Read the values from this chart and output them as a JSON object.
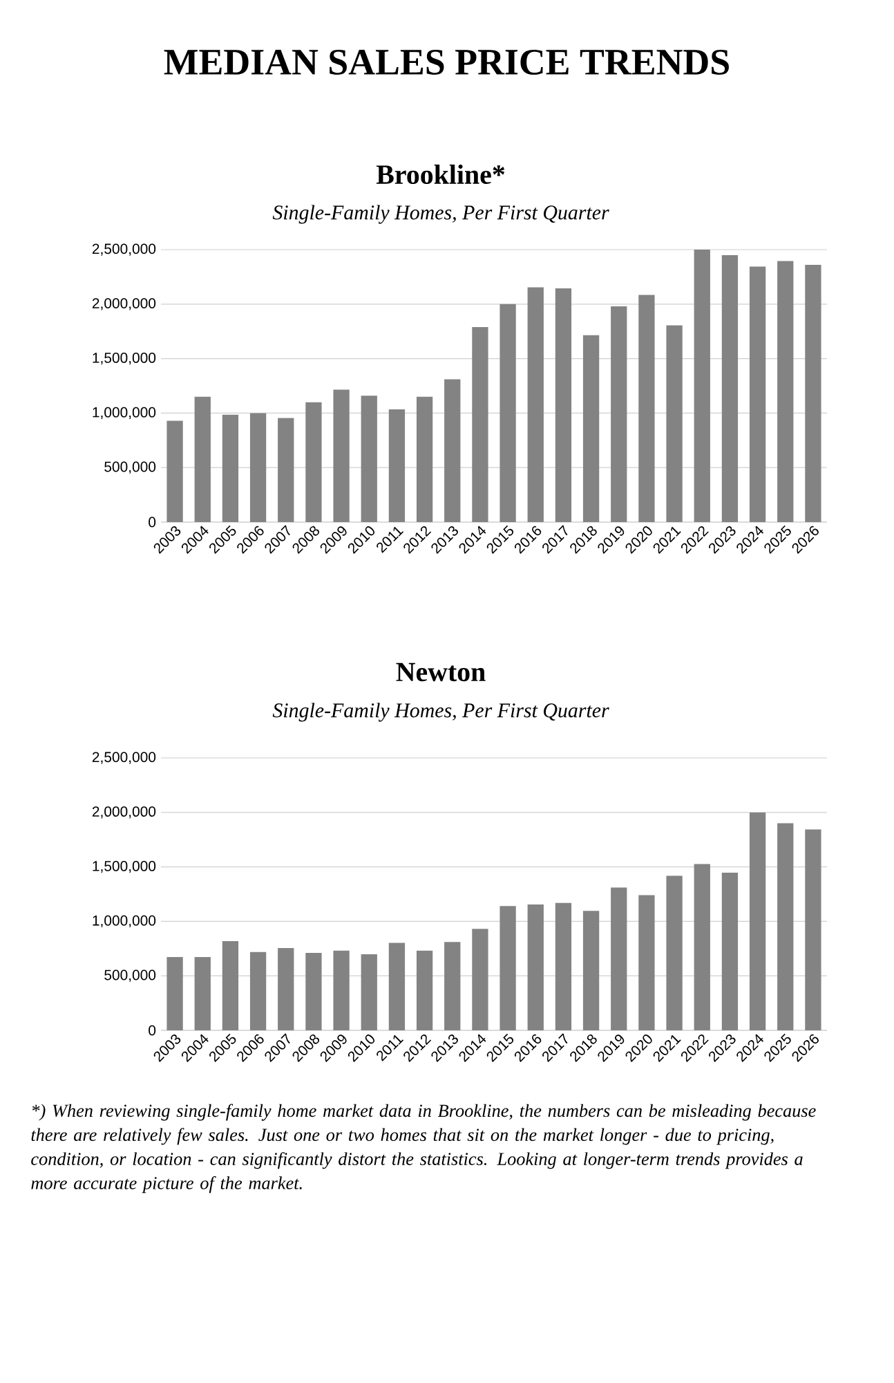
{
  "chart_data": [
    {
      "type": "bar",
      "title": "Brookline*",
      "subtitle": "Single-Family Homes, Per First Quarter",
      "annotations": [
        "MEDIAN SALES PRICE TRENDS"
      ],
      "categories": [
        "2003",
        "2004",
        "2005",
        "2006",
        "2007",
        "2008",
        "2009",
        "2010",
        "2011",
        "2012",
        "2013",
        "2014",
        "2015",
        "2016",
        "2017",
        "2018",
        "2019",
        "2020",
        "2021",
        "2022",
        "2023",
        "2024",
        "2025",
        "2026"
      ],
      "values": [
        930000,
        1150000,
        985000,
        1000000,
        955000,
        1100000,
        1215000,
        1160000,
        1035000,
        1150000,
        1310000,
        1790000,
        2000000,
        2155000,
        2145000,
        1715000,
        1980000,
        2085000,
        1805000,
        2500000,
        2450000,
        2345000,
        2395000,
        2360000
      ],
      "color": "#838383",
      "ylim": [
        0,
        2500000
      ],
      "yticks": [
        0,
        {
          "value": 500000,
          "label": "500,000"
        },
        {
          "value": 1000000,
          "label": "1,000,000"
        },
        {
          "value": 1500000,
          "label": "1,500,000"
        },
        {
          "value": 2000000,
          "label": "2,000,000"
        },
        {
          "value": 2500000,
          "label": "2,500,000"
        }
      ],
      "grid": "y"
    },
    {
      "type": "bar",
      "title": "Newton",
      "subtitle": "Single-Family Homes, Per First Quarter",
      "annotations": [
        "*) When reviewing single-family home market data in Brookline, the numbers can be misleading because there are relatively few sales. Just one or two homes that sit on the market longer - due to pricing, condition, or location - can significantly distort the statistics. Looking at longer-term trends provides a more accurate picture of the market."
      ],
      "categories": [
        "2003",
        "2004",
        "2005",
        "2006",
        "2007",
        "2008",
        "2009",
        "2010",
        "2011",
        "2012",
        "2013",
        "2014",
        "2015",
        "2016",
        "2017",
        "2018",
        "2019",
        "2020",
        "2021",
        "2022",
        "2023",
        "2024",
        "2025",
        "2026"
      ],
      "values": [
        673000,
        673000,
        818000,
        718000,
        756000,
        711000,
        731000,
        698000,
        803000,
        731000,
        811000,
        931000,
        1140000,
        1155000,
        1170000,
        1096000,
        1310000,
        1240000,
        1419000,
        1526000,
        1447000,
        1999000,
        1900000,
        1844000
      ],
      "color": "#838383",
      "ylim": [
        0,
        2500000
      ],
      "yticks": [
        0,
        {
          "value": 500000,
          "label": "500,000"
        },
        {
          "value": 1000000,
          "label": "1,000,000"
        },
        {
          "value": 1500000,
          "label": "1,500,000"
        },
        {
          "value": 2000000,
          "label": "2,000,000"
        },
        {
          "value": 2500000,
          "label": "2,500,000"
        }
      ],
      "grid": "y"
    }
  ]
}
